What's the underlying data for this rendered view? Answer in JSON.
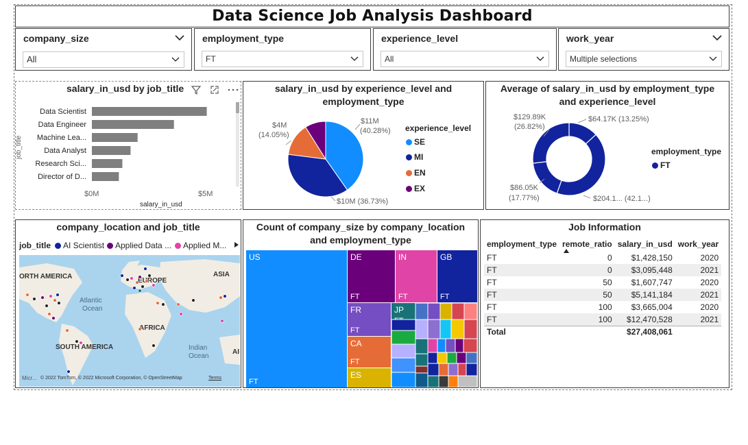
{
  "dashboard": {
    "title": "Data Science Job Analysis Dashboard"
  },
  "slicers": [
    {
      "label": "company_size",
      "value": "All"
    },
    {
      "label": "employment_type",
      "value": "FT"
    },
    {
      "label": "experience_level",
      "value": "All"
    },
    {
      "label": "work_year",
      "value": "Multiple selections"
    }
  ],
  "bar_visual": {
    "title": "salary_in_usd by job_title",
    "ylabel": "job_title",
    "xlabel": "salary_in_usd",
    "ticks": [
      "$0M",
      "$5M"
    ]
  },
  "pie_visual": {
    "title_line1": "salary_in_usd by experience_level and",
    "title_line2": "employment_type",
    "legend_title": "experience_level",
    "labels": {
      "se1": "$11M",
      "se2": "(40.28%)",
      "mi": "$10M (36.73%)",
      "en1": "$4M",
      "en2": "(14.05%)"
    }
  },
  "donut_visual": {
    "title_line1": "Average of salary_in_usd by employment_type",
    "title_line2": "and experience_level",
    "legend_title": "employment_type",
    "legend_item": "FT",
    "labels": {
      "a1": "$129.89K",
      "a2": "(26.82%)",
      "b": "$64.17K (13.25%)",
      "c1": "$86.05K",
      "c2": "(17.77%)",
      "d": "$204.1... (42.1...)"
    }
  },
  "map_visual": {
    "title": "company_location and job_title",
    "legend_title": "job_title",
    "legend_items": [
      {
        "label": "AI Scientist",
        "color": "#12239E"
      },
      {
        "label": "Applied Data ...",
        "color": "#6B007B"
      },
      {
        "label": "Applied M...",
        "color": "#E044A7"
      }
    ],
    "labels": {
      "na": "ORTH AMERICA",
      "eu": "EUROPE",
      "asia": "ASIA",
      "atl1": "Atlantic",
      "atl2": "Ocean",
      "africa": "AFRICA",
      "sa": "SOUTH AMERICA",
      "ind1": "Indian",
      "ind2": "Ocean",
      "au": "AI"
    },
    "attribution": "© 2022 TomTom, © 2022 Microsoft Corporation, © OpenStreetMap",
    "terms": "Terms",
    "bing": "Micr..."
  },
  "treemap_visual": {
    "title_line1": "Count of company_size by company_location",
    "title_line2": "and employment_type",
    "cells": [
      {
        "label": "US",
        "sub": "FT",
        "color": "#118DFF"
      },
      {
        "label": "DE",
        "sub": "FT",
        "color": "#6B007B"
      },
      {
        "label": "IN",
        "sub": "FT",
        "color": "#E044A7"
      },
      {
        "label": "GB",
        "sub": "FT",
        "color": "#12239E"
      },
      {
        "label": "FR",
        "sub": "FT",
        "color": "#744EC2"
      },
      {
        "label": "JP",
        "sub": "FT",
        "color": "#197278"
      },
      {
        "label": "CA",
        "sub": "FT",
        "color": "#E66C37"
      },
      {
        "label": "ES",
        "sub": "",
        "color": "#D9B300"
      }
    ]
  },
  "table_visual": {
    "title": "Job Information",
    "columns": [
      "employment_type",
      "remote_ratio",
      "salary_in_usd",
      "work_year"
    ],
    "rows": [
      [
        "FT",
        "0",
        "$1,428,150",
        "2020"
      ],
      [
        "FT",
        "0",
        "$3,095,448",
        "2021"
      ],
      [
        "FT",
        "50",
        "$1,607,747",
        "2020"
      ],
      [
        "FT",
        "50",
        "$5,141,184",
        "2021"
      ],
      [
        "FT",
        "100",
        "$3,665,004",
        "2020"
      ],
      [
        "FT",
        "100",
        "$12,470,528",
        "2021"
      ]
    ],
    "total_label": "Total",
    "total_value": "$27,408,061"
  },
  "chart_data": [
    {
      "type": "bar",
      "title": "salary_in_usd by job_title",
      "categories": [
        "Data Scientist",
        "Data Engineer",
        "Machine Lea...",
        "Data Analyst",
        "Research Sci...",
        "Director of D..."
      ],
      "values": [
        4.9,
        3.5,
        1.95,
        1.65,
        1.3,
        1.15
      ],
      "unit": "$M",
      "xlim": [
        0,
        5.5
      ],
      "xlabel": "salary_in_usd",
      "ylabel": "job_title"
    },
    {
      "type": "pie",
      "title": "salary_in_usd by experience_level and employment_type",
      "series": [
        {
          "name": "SE",
          "value": 40.28,
          "color": "#118DFF"
        },
        {
          "name": "MI",
          "value": 36.73,
          "color": "#12239E"
        },
        {
          "name": "EN",
          "value": 14.05,
          "color": "#E66C37"
        },
        {
          "name": "EX",
          "value": 8.94,
          "color": "#6B007B"
        }
      ]
    },
    {
      "type": "pie",
      "title": "Average of salary_in_usd by employment_type and experience_level",
      "series": [
        {
          "value": 13.25,
          "color": "#12239E"
        },
        {
          "value": 42.16,
          "color": "#12239E"
        },
        {
          "value": 17.77,
          "color": "#12239E"
        },
        {
          "value": 26.82,
          "color": "#12239E"
        }
      ]
    }
  ]
}
